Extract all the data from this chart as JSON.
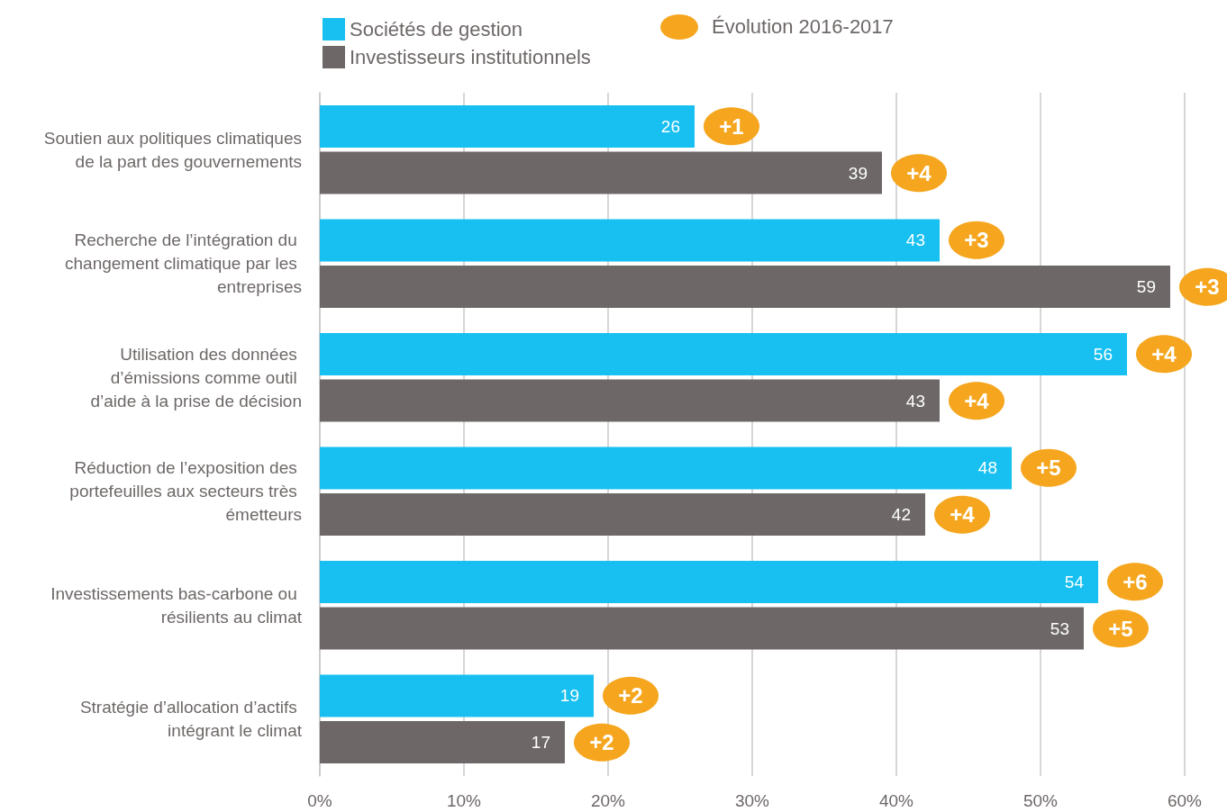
{
  "chart_data": {
    "type": "bar",
    "orientation": "horizontal",
    "categories": [
      "Soutien aux politiques climatiques de la part des gouvernements",
      "Recherche de l’intégration du changement climatique par les entreprises",
      "Utilisation des données d’émissions comme outil d’aide à la prise de décision",
      "Réduction de l’exposition des portefeuilles aux secteurs très émetteurs",
      "Investissements bas-carbone ou résilients au climat",
      "Stratégie d’allocation d’actifs intégrant le climat"
    ],
    "series": [
      {
        "name": "Sociétés de gestion",
        "color": "#17c0f0",
        "values": [
          26,
          43,
          56,
          48,
          54,
          19
        ]
      },
      {
        "name": "Investisseurs institutionnels",
        "color": "#6d6867",
        "values": [
          39,
          59,
          43,
          42,
          53,
          17
        ]
      }
    ],
    "xlim": [
      0,
      60
    ],
    "xticks": [
      {
        "value": 0,
        "label": "0%"
      },
      {
        "value": 10,
        "label": "10%"
      },
      {
        "value": 20,
        "label": "20%"
      },
      {
        "value": 30,
        "label": "30%"
      },
      {
        "value": 40,
        "label": "40%"
      },
      {
        "value": 50,
        "label": "50%"
      },
      {
        "value": 60,
        "label": "60%"
      }
    ],
    "data_labels": true,
    "grid": "x",
    "legend": "top left",
    "annotations": [
      "Évolution 2016-2017",
      {
        "text": "+1",
        "x": 26,
        "y": "Soutien aux politiques climatiques de la part des gouvernements"
      },
      {
        "text": "+4",
        "x": 39,
        "y": "Soutien aux politiques climatiques de la part des gouvernements"
      },
      {
        "text": "+3",
        "x": 43,
        "y": "Recherche de l’intégration du changement climatique par les entreprises"
      },
      {
        "text": "+3",
        "x": 59,
        "y": "Recherche de l’intégration du changement climatique par les entreprises"
      },
      {
        "text": "+4",
        "x": 56,
        "y": "Utilisation des données d’émissions comme outil d’aide à la prise de décision"
      },
      {
        "text": "+4",
        "x": 43,
        "y": "Utilisation des données d’émissions comme outil d’aide à la prise de décision"
      },
      {
        "text": "+5",
        "x": 48,
        "y": "Réduction de l’exposition des portefeuilles aux secteurs très émetteurs"
      },
      {
        "text": "+4",
        "x": 42,
        "y": "Réduction de l’exposition des portefeuilles aux secteurs très émetteurs"
      },
      {
        "text": "+6",
        "x": 54,
        "y": "Investissements bas-carbone ou résilients au climat"
      },
      {
        "text": "+5",
        "x": 53,
        "y": "Investissements bas-carbone ou résilients au climat"
      },
      {
        "text": "+2",
        "x": 19,
        "y": "Stratégie d’allocation d’actifs intégrant le climat"
      },
      {
        "text": "+2",
        "x": 17,
        "y": "Stratégie d’allocation d’actifs intégrant le climat"
      }
    ]
  }
}
